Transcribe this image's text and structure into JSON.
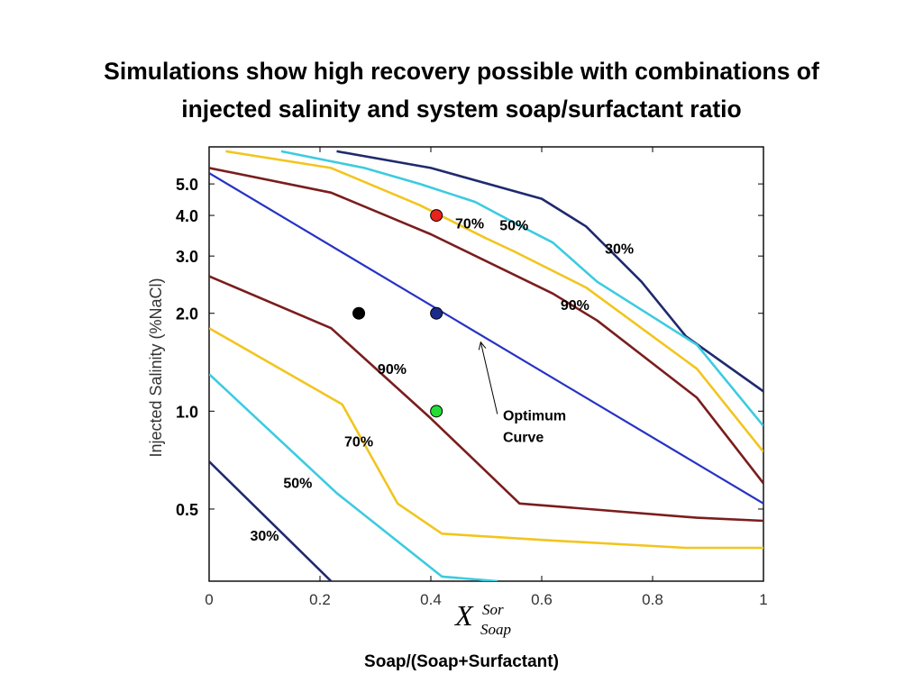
{
  "title": {
    "line1": "Simulations show high recovery possible with combinations of",
    "line2": "injected salinity and system soap/surfactant ratio"
  },
  "x_symbol": {
    "main": "X",
    "superscript": "Sor",
    "subscript": "Soap"
  },
  "x_caption": "Soap/(Soap+Surfactant)",
  "colors": {
    "c90": "#7a1d1d",
    "c70": "#f2c51f",
    "c50": "#3ccbe0",
    "c30": "#1f2a6e",
    "optimum": "#2633c4",
    "point_red": "#e8221c",
    "point_blue": "#1c2a8a",
    "point_black": "#000000",
    "point_green": "#22dd33"
  },
  "chart_data": {
    "type": "line",
    "title": "",
    "xlabel": "",
    "ylabel": "Injected Salinity (%NaCl)",
    "xlim": [
      0,
      1
    ],
    "ylim": [
      0.3,
      6.5
    ],
    "y_scale": "log",
    "x_ticks": [
      "0",
      "0.2",
      "0.4",
      "0.6",
      "0.8",
      "1"
    ],
    "x_tick_values": [
      0,
      0.2,
      0.4,
      0.6,
      0.8,
      1
    ],
    "y_ticks": [
      "0.5",
      "1.0",
      "2.0",
      "3.0",
      "4.0",
      "5.0"
    ],
    "y_tick_values": [
      0.5,
      1.0,
      2.0,
      3.0,
      4.0,
      5.0
    ],
    "grid": false,
    "series": [
      {
        "colorKey": "c30",
        "points": [
          [
            0.23,
            6.3
          ],
          [
            0.4,
            5.6
          ],
          [
            0.6,
            4.5
          ],
          [
            0.68,
            3.7
          ],
          [
            0.78,
            2.5
          ],
          [
            0.86,
            1.7
          ],
          [
            1.0,
            1.15
          ]
        ]
      },
      {
        "colorKey": "c50",
        "points": [
          [
            0.13,
            6.3
          ],
          [
            0.28,
            5.6
          ],
          [
            0.38,
            5.0
          ],
          [
            0.48,
            4.4
          ],
          [
            0.55,
            3.8
          ],
          [
            0.62,
            3.3
          ],
          [
            0.7,
            2.5
          ],
          [
            0.88,
            1.6
          ],
          [
            1.0,
            0.9
          ]
        ]
      },
      {
        "colorKey": "c70",
        "points": [
          [
            0.03,
            6.3
          ],
          [
            0.22,
            5.6
          ],
          [
            0.38,
            4.3
          ],
          [
            0.5,
            3.4
          ],
          [
            0.55,
            3.1
          ],
          [
            0.68,
            2.4
          ],
          [
            0.88,
            1.35
          ],
          [
            1.0,
            0.75
          ]
        ]
      },
      {
        "colorKey": "c90",
        "points": [
          [
            0.0,
            5.6
          ],
          [
            0.22,
            4.7
          ],
          [
            0.4,
            3.5
          ],
          [
            0.62,
            2.3
          ],
          [
            0.7,
            1.9
          ],
          [
            0.88,
            1.1
          ],
          [
            1.0,
            0.6
          ]
        ]
      },
      {
        "colorKey": "optimum",
        "points": [
          [
            0.0,
            5.4
          ],
          [
            1.0,
            0.52
          ]
        ]
      },
      {
        "colorKey": "c90",
        "points": [
          [
            0.0,
            2.6
          ],
          [
            0.22,
            1.8
          ],
          [
            0.4,
            0.95
          ],
          [
            0.56,
            0.52
          ],
          [
            0.88,
            0.47
          ],
          [
            1.0,
            0.46
          ]
        ]
      },
      {
        "colorKey": "c70",
        "points": [
          [
            0.0,
            1.8
          ],
          [
            0.24,
            1.05
          ],
          [
            0.34,
            0.52
          ],
          [
            0.42,
            0.42
          ],
          [
            0.62,
            0.4
          ],
          [
            0.86,
            0.38
          ],
          [
            1.0,
            0.38
          ]
        ]
      },
      {
        "colorKey": "c50",
        "points": [
          [
            0.0,
            1.3
          ],
          [
            0.23,
            0.56
          ],
          [
            0.42,
            0.31
          ],
          [
            0.52,
            0.3
          ]
        ]
      },
      {
        "colorKey": "c30",
        "points": [
          [
            0.0,
            0.7
          ],
          [
            0.22,
            0.3
          ]
        ]
      }
    ],
    "points": [
      {
        "name": "red",
        "x": 0.41,
        "y": 4.0,
        "colorKey": "point_red"
      },
      {
        "name": "navy",
        "x": 0.41,
        "y": 2.0,
        "colorKey": "point_blue"
      },
      {
        "name": "black",
        "x": 0.27,
        "y": 2.0,
        "colorKey": "point_black"
      },
      {
        "name": "green",
        "x": 0.41,
        "y": 1.0,
        "colorKey": "point_green"
      }
    ],
    "labels": [
      {
        "text": "70%",
        "x": 0.47,
        "y": 3.65
      },
      {
        "text": "50%",
        "x": 0.55,
        "y": 3.6
      },
      {
        "text": "30%",
        "x": 0.74,
        "y": 3.05
      },
      {
        "text": "90%",
        "x": 0.66,
        "y": 2.05
      },
      {
        "text": "90%",
        "x": 0.33,
        "y": 1.3
      },
      {
        "text": "70%",
        "x": 0.27,
        "y": 0.78
      },
      {
        "text": "50%",
        "x": 0.16,
        "y": 0.58
      },
      {
        "text": "30%",
        "x": 0.1,
        "y": 0.4
      }
    ],
    "annotation": {
      "line1": "Optimum",
      "line2": "Curve",
      "text_x": 0.53,
      "text_y": 0.88,
      "arrow_from": [
        0.52,
        0.98
      ],
      "arrow_to": [
        0.49,
        1.63
      ]
    }
  }
}
